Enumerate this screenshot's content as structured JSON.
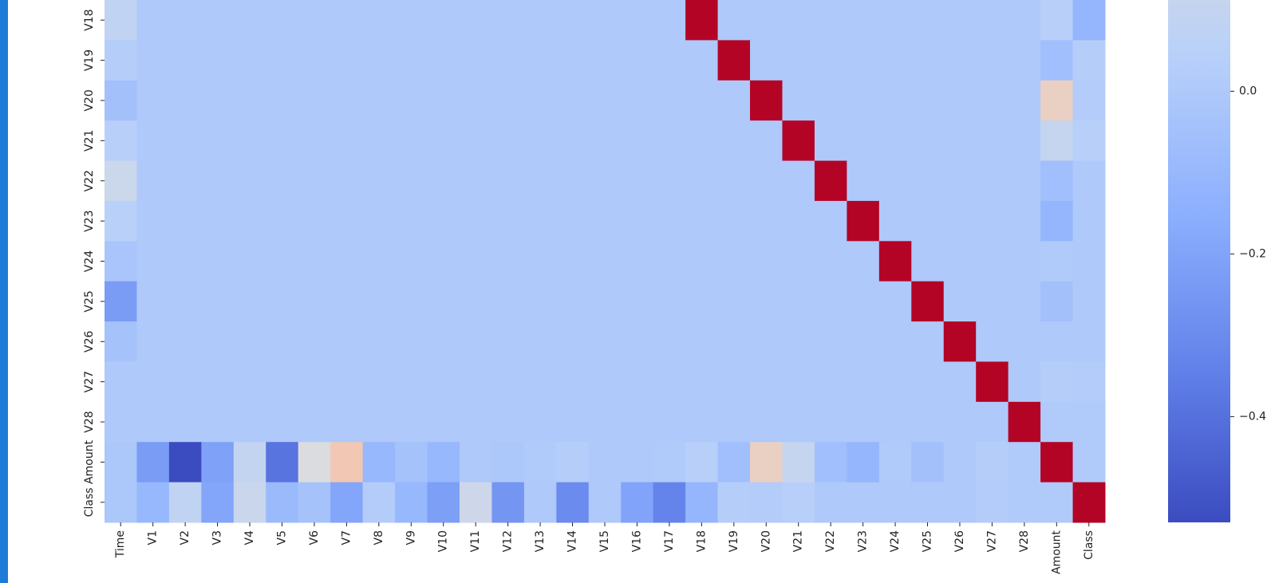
{
  "chart_data": {
    "type": "heatmap",
    "rows": [
      "V18",
      "V19",
      "V20",
      "V21",
      "V22",
      "V23",
      "V24",
      "V25",
      "V26",
      "V27",
      "V28",
      "Amount",
      "Class"
    ],
    "columns": [
      "Time",
      "V1",
      "V2",
      "V3",
      "V4",
      "V5",
      "V6",
      "V7",
      "V8",
      "V9",
      "V10",
      "V11",
      "V12",
      "V13",
      "V14",
      "V15",
      "V16",
      "V17",
      "V18",
      "V19",
      "V20",
      "V21",
      "V22",
      "V23",
      "V24",
      "V25",
      "V26",
      "V27",
      "V28",
      "Amount",
      "Class"
    ],
    "z": [
      [
        0.09,
        0,
        0,
        0,
        0,
        0,
        0,
        0,
        0,
        0,
        0,
        0,
        0,
        0,
        0,
        0,
        0,
        0,
        1,
        0,
        0,
        0,
        0,
        0,
        0,
        0,
        0,
        0,
        0,
        0.04,
        -0.11
      ],
      [
        0.03,
        0,
        0,
        0,
        0,
        0,
        0,
        0,
        0,
        0,
        0,
        0,
        0,
        0,
        0,
        0,
        0,
        0,
        0,
        1,
        0,
        0,
        0,
        0,
        0,
        0,
        0,
        0,
        0,
        -0.06,
        0.03
      ],
      [
        -0.05,
        0,
        0,
        0,
        0,
        0,
        0,
        0,
        0,
        0,
        0,
        0,
        0,
        0,
        0,
        0,
        0,
        0,
        0,
        0,
        1,
        0,
        0,
        0,
        0,
        0,
        0,
        0,
        0,
        0.34,
        0.02
      ],
      [
        0.04,
        0,
        0,
        0,
        0,
        0,
        0,
        0,
        0,
        0,
        0,
        0,
        0,
        0,
        0,
        0,
        0,
        0,
        0,
        0,
        0,
        1,
        0,
        0,
        0,
        0,
        0,
        0,
        0,
        0.11,
        0.04
      ],
      [
        0.14,
        0,
        0,
        0,
        0,
        0,
        0,
        0,
        0,
        0,
        0,
        0,
        0,
        0,
        0,
        0,
        0,
        0,
        0,
        0,
        0,
        0,
        1,
        0,
        0,
        0,
        0,
        0,
        0,
        -0.06,
        0
      ],
      [
        0.05,
        0,
        0,
        0,
        0,
        0,
        0,
        0,
        0,
        0,
        0,
        0,
        0,
        0,
        0,
        0,
        0,
        0,
        0,
        0,
        0,
        0,
        0,
        1,
        0,
        0,
        0,
        0,
        0,
        -0.11,
        0
      ],
      [
        -0.02,
        0,
        0,
        0,
        0,
        0,
        0,
        0,
        0,
        0,
        0,
        0,
        0,
        0,
        0,
        0,
        0,
        0,
        0,
        0,
        0,
        0,
        0,
        0,
        1,
        0,
        0,
        0,
        0,
        0.01,
        0
      ],
      [
        -0.23,
        0,
        0,
        0,
        0,
        0,
        0,
        0,
        0,
        0,
        0,
        0,
        0,
        0,
        0,
        0,
        0,
        0,
        0,
        0,
        0,
        0,
        0,
        0,
        0,
        1,
        0,
        0,
        0,
        -0.05,
        0
      ],
      [
        -0.04,
        0,
        0,
        0,
        0,
        0,
        0,
        0,
        0,
        0,
        0,
        0,
        0,
        0,
        0,
        0,
        0,
        0,
        0,
        0,
        0,
        0,
        0,
        0,
        0,
        0,
        1,
        0,
        0,
        0,
        0
      ],
      [
        0,
        0,
        0,
        0,
        0,
        0,
        0,
        0,
        0,
        0,
        0,
        0,
        0,
        0,
        0,
        0,
        0,
        0,
        0,
        0,
        0,
        0,
        0,
        0,
        0,
        0,
        0,
        1,
        0,
        0.03,
        0.02
      ],
      [
        0,
        0,
        0,
        0,
        0,
        0,
        0,
        0,
        0,
        0,
        0,
        0,
        0,
        0,
        0,
        0,
        0,
        0,
        0,
        0,
        0,
        0,
        0,
        0,
        0,
        0,
        0,
        0,
        1,
        0.01,
        0.01
      ],
      [
        -0.01,
        -0.23,
        -0.53,
        -0.21,
        0.1,
        -0.39,
        0.22,
        0.4,
        -0.1,
        -0.04,
        -0.1,
        0,
        -0.01,
        0.01,
        0.03,
        0,
        0,
        0.01,
        0.04,
        -0.06,
        0.34,
        0.11,
        -0.06,
        -0.11,
        0.01,
        -0.05,
        0,
        0.03,
        0.01,
        1,
        0.01
      ],
      [
        -0.01,
        -0.1,
        0.09,
        -0.19,
        0.13,
        -0.09,
        -0.04,
        -0.19,
        0.02,
        -0.1,
        -0.22,
        0.15,
        -0.26,
        0,
        -0.3,
        0,
        -0.2,
        -0.33,
        -0.11,
        0.03,
        0.02,
        0.04,
        0,
        0,
        0,
        0,
        0,
        0.02,
        0.01,
        0.01,
        1
      ]
    ],
    "zlim": [
      -0.53,
      1
    ],
    "colorbar_ticks": [
      {
        "value": 0,
        "label": "0.0"
      },
      {
        "value": -0.2,
        "label": "−0.2"
      },
      {
        "value": -0.4,
        "label": "−0.4"
      }
    ]
  }
}
